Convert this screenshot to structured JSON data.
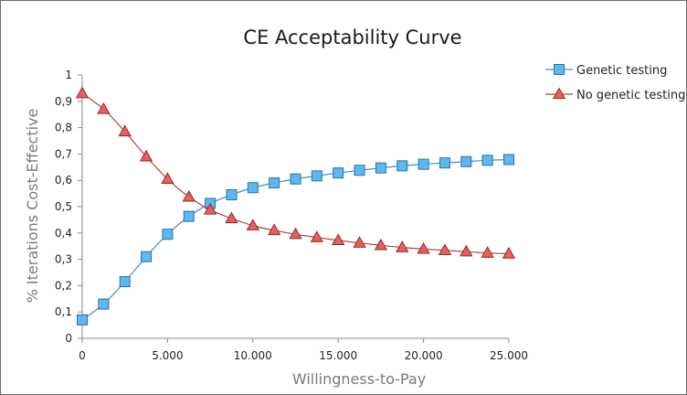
{
  "chart_data": {
    "type": "line",
    "title": "CE Acceptability Curve",
    "xlabel": "Willingness-to-Pay",
    "ylabel": "% Iterations Cost-Effective",
    "xlim": [
      0,
      25000
    ],
    "ylim": [
      0,
      1
    ],
    "x_ticks": [
      0,
      5000,
      10000,
      15000,
      20000,
      25000
    ],
    "x_tick_labels": [
      "0",
      "5.000",
      "10.000",
      "15.000",
      "20.000",
      "25.000"
    ],
    "y_ticks": [
      0,
      0.1,
      0.2,
      0.3,
      0.4,
      0.5,
      0.6,
      0.7,
      0.8,
      0.9,
      1
    ],
    "y_tick_labels": [
      "0",
      "0,1",
      "0,2",
      "0,3",
      "0,4",
      "0,5",
      "0,6",
      "0,7",
      "0,8",
      "0,9",
      "1"
    ],
    "grid": false,
    "legend_position": "top-right",
    "x": [
      0,
      1250,
      2500,
      3750,
      5000,
      6250,
      7500,
      8750,
      10000,
      11250,
      12500,
      13750,
      15000,
      16250,
      17500,
      18750,
      20000,
      21250,
      22500,
      23750,
      25000
    ],
    "series": [
      {
        "name": "Genetic testing",
        "marker": "square",
        "color": "#5bb8f2",
        "edge_color": "#2f6fa5",
        "line_color": "#4a8cc2",
        "values": [
          0.07,
          0.13,
          0.215,
          0.31,
          0.395,
          0.463,
          0.512,
          0.545,
          0.572,
          0.59,
          0.605,
          0.617,
          0.628,
          0.638,
          0.647,
          0.655,
          0.661,
          0.666,
          0.671,
          0.676,
          0.679
        ]
      },
      {
        "name": "No genetic testing",
        "marker": "triangle",
        "color": "#e8605c",
        "edge_color": "#8e2a28",
        "line_color": "#b04542",
        "values": [
          0.93,
          0.87,
          0.785,
          0.69,
          0.605,
          0.537,
          0.488,
          0.455,
          0.428,
          0.41,
          0.395,
          0.383,
          0.372,
          0.362,
          0.353,
          0.345,
          0.339,
          0.334,
          0.329,
          0.324,
          0.321
        ]
      }
    ]
  }
}
